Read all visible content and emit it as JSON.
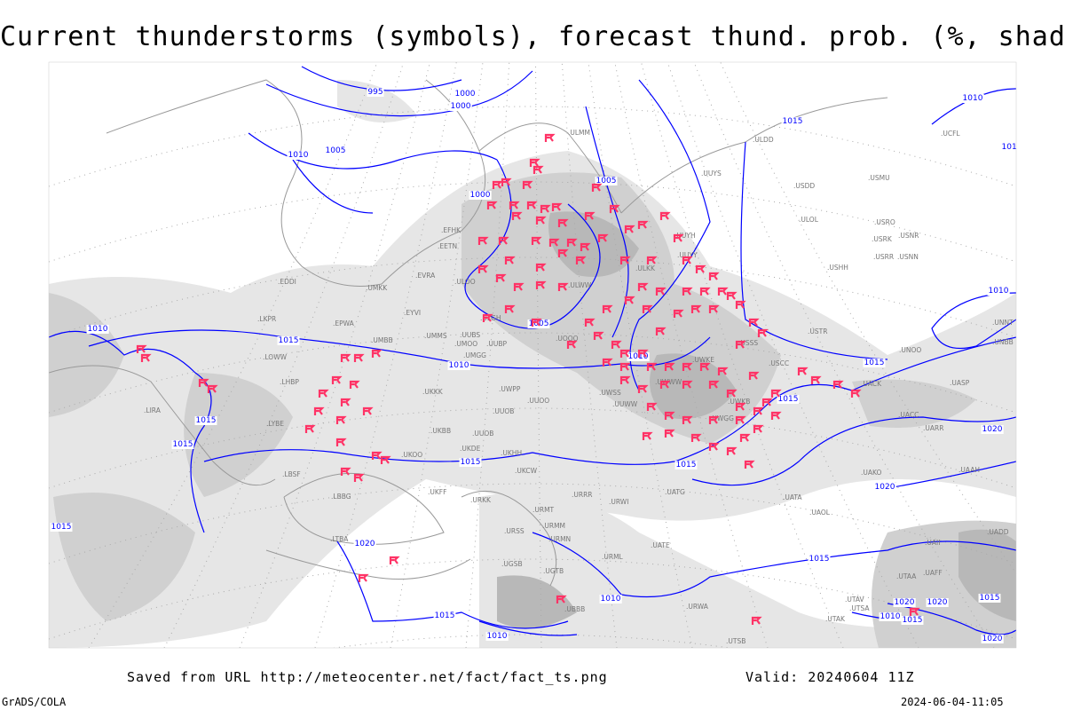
{
  "title": "Current thunderstorms (symbols), forecast thund. prob. (%, shaded)",
  "footer": {
    "saved_from": "Saved from URL http://meteocenter.net/fact/fact_ts.png",
    "valid": "Valid: 20240604 11Z",
    "software": "GrADS/COLA",
    "timestamp": "2024-06-04-11:05"
  },
  "colors": {
    "thunderstorm_symbol": "#ff3366",
    "isobar": "#0000ff",
    "coastline": "#999999",
    "shading_light": "#e6e6e6",
    "shading_mid": "#d0d0d0",
    "shading_dark": "#b8b8b8"
  },
  "legend": {
    "symbol_icon": "thunderstorm-flag-icon"
  },
  "isobar_labels": [
    "995",
    "1000",
    "1000",
    "1005",
    "1010",
    "1005",
    "1000",
    "1015",
    "1010",
    "1010",
    "1015",
    "1010",
    "1015",
    "1015",
    "1010",
    "1005",
    "1010",
    "1010",
    "1015",
    "1015",
    "1015",
    "1015",
    "1020",
    "1020",
    "1015",
    "1020",
    "1020",
    "1015",
    "1010",
    "1015",
    "1010",
    "1015",
    "1020",
    "1015",
    "1010",
    "1020"
  ],
  "stations": [
    "ULMM",
    "ULOO",
    "EFHK",
    "EETN",
    "EVRA",
    "EYVI",
    "UMMS",
    "UMKK",
    "EDDI",
    "LKPR",
    "EPWA",
    "UMBB",
    "LOWW",
    "LHBP",
    "LIRA",
    "LYBE",
    "LBSF",
    "LBBG",
    "LTBA",
    "UKKK",
    "UKBB",
    "UKOO",
    "UKDE",
    "UKFF",
    "URKK",
    "URSS",
    "URMT",
    "URMM",
    "URMN",
    "UGSB",
    "UGTB",
    "UBBB",
    "URML",
    "UATE",
    "UATG",
    "UATA",
    "UAOL",
    "UACC",
    "UAKO",
    "UAAH",
    "UARR",
    "UASP",
    "UACK",
    "UNOO",
    "UNBB",
    "UNNT",
    "USTR",
    "USSS",
    "USCC",
    "USHH",
    "USRR",
    "USNN",
    "USRK",
    "USNR",
    "USRO",
    "USMU",
    "USDD",
    "ULDD",
    "UUYS",
    "UUYH",
    "ULKK",
    "ULWW",
    "UUYY",
    "UWKE",
    "UWKB",
    "UWWW",
    "UWPP",
    "UWSS",
    "UWGG",
    "UUOO",
    "UUOB",
    "UMGG",
    "UUBP",
    "UUBS",
    "UMOO",
    "ULGH",
    "UUWW",
    "UUOB",
    "UKHH",
    "UKCW",
    "URRR",
    "URWI",
    "URWA",
    "UTAK",
    "UTAV",
    "UTSA",
    "UTSB",
    "UTAA",
    "UAII",
    "UADD",
    "UAFF",
    "UCFL",
    "UOOO",
    "ULOL"
  ]
}
